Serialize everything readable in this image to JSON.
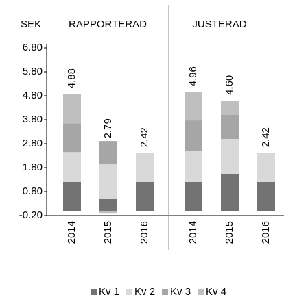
{
  "chart_data": {
    "type": "stacked-bar",
    "ylabel": "SEK",
    "groups": [
      "RAPPORTERAD",
      "JUSTERAD"
    ],
    "categories": [
      "2014",
      "2015",
      "2016",
      "2014",
      "2015",
      "2016"
    ],
    "series": [
      {
        "name": "Kv 1",
        "color": "#737373",
        "values": [
          1.2,
          0.49,
          1.2,
          1.2,
          1.54,
          1.2
        ]
      },
      {
        "name": "Kv 2",
        "color": "#d9d9d9",
        "values": [
          1.25,
          1.45,
          1.22,
          1.31,
          1.46,
          1.22
        ]
      },
      {
        "name": "Kv 3",
        "color": "#a6a6a6",
        "values": [
          1.2,
          0.97,
          null,
          1.26,
          1.0,
          null
        ]
      },
      {
        "name": "Kv 4",
        "color": "#bfbfbf",
        "values": [
          1.23,
          -0.12,
          null,
          1.19,
          0.6,
          null
        ]
      }
    ],
    "totals": [
      4.88,
      2.79,
      2.42,
      4.96,
      4.6,
      2.42
    ],
    "total_labels": [
      "4.88",
      "2.79",
      "2.42",
      "4.96",
      "4.60",
      "2.42"
    ],
    "ylim": [
      -0.2,
      6.8
    ],
    "yticks": [
      {
        "value": -0.2,
        "label": "-0.20"
      },
      {
        "value": 0.8,
        "label": "0.80"
      },
      {
        "value": 1.8,
        "label": "1.80"
      },
      {
        "value": 2.8,
        "label": "2.80"
      },
      {
        "value": 3.8,
        "label": "3.80"
      },
      {
        "value": 4.8,
        "label": "4.80"
      },
      {
        "value": 5.8,
        "label": "5.80"
      },
      {
        "value": 6.8,
        "label": "6.80"
      }
    ],
    "group_color": "#3ba3d6",
    "legend": "bottom"
  }
}
